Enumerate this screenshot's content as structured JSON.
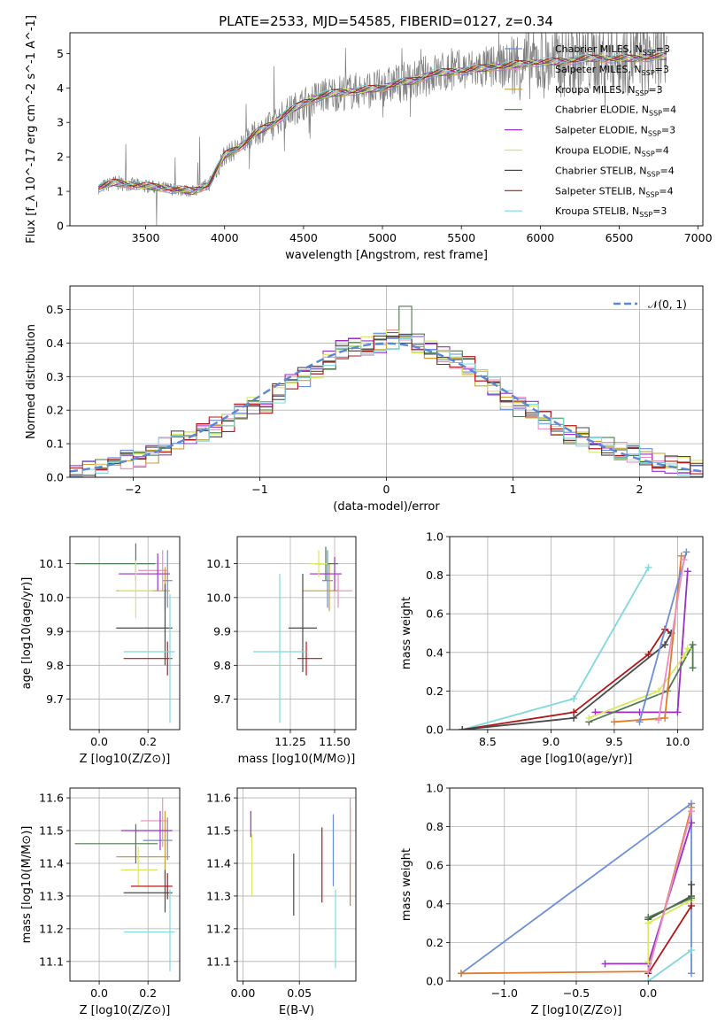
{
  "figure_title": "PLATE=2533, MJD=54585, FIBERID=0127, z=0.34",
  "colors": {
    "chabrier_miles": "#6b8ed6",
    "salpeter_miles": "#ea8fbf",
    "kroupa_miles": "#c8a030",
    "chabrier_elodie": "#4e7a4e",
    "salpeter_elodie": "#9b2fc8",
    "kroupa_elodie": "#d9e860",
    "chabrier_stelib": "#4a4a4a",
    "salpeter_stelib": "#b01818",
    "kroupa_stelib": "#7fd8dc",
    "data": "#7f7f7f",
    "normal": "#5b88d6",
    "extra_orange": "#e07b2a"
  },
  "chart_data": [
    {
      "id": "spectrum",
      "type": "line",
      "xlabel": "wavelength [Angstrom, rest frame]",
      "ylabel": "Flux [f_λ 10^-17 erg cm^-2 s^-1 A^-1]",
      "xlim": [
        3020,
        7030
      ],
      "ylim": [
        0,
        5.6
      ],
      "xticks": [
        3500,
        4000,
        4500,
        5000,
        5500,
        6000,
        6500,
        7000
      ],
      "yticks": [
        0,
        1,
        2,
        3,
        4,
        5
      ],
      "grid": false,
      "legend_position": "right",
      "legend": [
        {
          "name": "Chabrier MILES, N_SSP=3",
          "color": "chabrier_miles"
        },
        {
          "name": "Salpeter MILES, N_SSP=3",
          "color": "salpeter_miles"
        },
        {
          "name": "Kroupa MILES, N_SSP=3",
          "color": "kroupa_miles"
        },
        {
          "name": "Chabrier ELODIE, N_SSP=4",
          "color": "chabrier_elodie"
        },
        {
          "name": "Salpeter ELODIE, N_SSP=3",
          "color": "salpeter_elodie"
        },
        {
          "name": "Kroupa ELODIE, N_SSP=4",
          "color": "kroupa_elodie"
        },
        {
          "name": "Chabrier STELIB, N_SSP=4",
          "color": "chabrier_stelib"
        },
        {
          "name": "Salpeter STELIB, N_SSP=4",
          "color": "salpeter_stelib"
        },
        {
          "name": "Kroupa STELIB, N_SSP=3",
          "color": "kroupa_stelib"
        }
      ],
      "continuum": {
        "x": [
          3200,
          3300,
          3400,
          3500,
          3600,
          3700,
          3800,
          3900,
          4000,
          4100,
          4200,
          4300,
          4400,
          4500,
          4600,
          4700,
          4800,
          4900,
          5000,
          5100,
          5200,
          5300,
          5400,
          5500,
          5600,
          5700,
          5800,
          5900,
          6000,
          6100,
          6200,
          6300,
          6400,
          6500,
          6600,
          6700,
          6800
        ],
        "y": [
          1.1,
          1.25,
          1.2,
          1.15,
          1.1,
          1.05,
          1.0,
          1.2,
          2.05,
          2.3,
          2.7,
          2.95,
          3.3,
          3.55,
          3.75,
          3.85,
          3.9,
          3.95,
          4.0,
          4.15,
          4.2,
          4.4,
          4.45,
          4.5,
          4.55,
          4.6,
          4.65,
          4.7,
          4.75,
          4.75,
          4.8,
          4.85,
          4.85,
          4.85,
          4.85,
          4.9,
          4.9
        ]
      }
    },
    {
      "id": "residual_hist",
      "type": "line",
      "xlabel": "(data-model)/error",
      "ylabel": "Normed distribution",
      "xlim": [
        -2.5,
        2.5
      ],
      "ylim": [
        0,
        0.57
      ],
      "xticks": [
        -2,
        -1,
        0,
        1,
        2
      ],
      "yticks": [
        0.0,
        0.1,
        0.2,
        0.3,
        0.4,
        0.5
      ],
      "grid": true,
      "legend_position": "top-right",
      "legend": [
        {
          "name": "𝒩(0, 1)",
          "color": "normal"
        }
      ],
      "series": [
        {
          "name": "𝒩(0, 1)",
          "function": "standard normal pdf",
          "color": "normal"
        }
      ],
      "hist_centers": [
        -2.45,
        -2.35,
        -2.25,
        -2.15,
        -2.05,
        -1.95,
        -1.85,
        -1.75,
        -1.65,
        -1.55,
        -1.45,
        -1.35,
        -1.25,
        -1.15,
        -1.05,
        -0.95,
        -0.85,
        -0.75,
        -0.65,
        -0.55,
        -0.45,
        -0.35,
        -0.25,
        -0.15,
        -0.05,
        0.05,
        0.15,
        0.25,
        0.35,
        0.45,
        0.55,
        0.65,
        0.75,
        0.85,
        0.95,
        1.05,
        1.15,
        1.25,
        1.35,
        1.45,
        1.55,
        1.65,
        1.75,
        1.85,
        1.95,
        2.05,
        2.15,
        2.25,
        2.35,
        2.45
      ],
      "hist_base": [
        0.015,
        0.025,
        0.035,
        0.05,
        0.055,
        0.06,
        0.07,
        0.09,
        0.11,
        0.13,
        0.135,
        0.15,
        0.165,
        0.2,
        0.21,
        0.22,
        0.25,
        0.28,
        0.3,
        0.32,
        0.35,
        0.38,
        0.385,
        0.39,
        0.4,
        0.41,
        0.42,
        0.4,
        0.38,
        0.36,
        0.35,
        0.33,
        0.3,
        0.27,
        0.23,
        0.21,
        0.2,
        0.17,
        0.15,
        0.13,
        0.12,
        0.1,
        0.09,
        0.08,
        0.07,
        0.06,
        0.045,
        0.04,
        0.035,
        0.03
      ]
    },
    {
      "id": "age_vs_Z",
      "type": "scatter",
      "xlabel": "Z [log10(Z/Z⊙)]",
      "ylabel": "age  [log10(age/yr)]",
      "xlim": [
        -0.12,
        0.33
      ],
      "ylim": [
        9.61,
        10.18
      ],
      "xticks": [
        0.0,
        0.2
      ],
      "yticks": [
        9.7,
        9.8,
        9.9,
        10.0,
        10.1
      ],
      "grid": true,
      "points": [
        {
          "color": "chabrier_miles",
          "x": 0.28,
          "y": 10.05,
          "xerr": [
            0.02,
            0.02
          ],
          "yerr": [
            0.08,
            0.09
          ]
        },
        {
          "color": "salpeter_miles",
          "x": 0.26,
          "y": 10.08,
          "xerr": [
            0.1,
            0.02
          ],
          "yerr": [
            0.06,
            0.06
          ]
        },
        {
          "color": "kroupa_miles",
          "x": 0.27,
          "y": 10.02,
          "xerr": [
            0.2,
            0.02
          ],
          "yerr": [
            0.06,
            0.07
          ]
        },
        {
          "color": "chabrier_elodie",
          "x": 0.15,
          "y": 10.1,
          "xerr": [
            0.25,
            0.08
          ],
          "yerr": [
            0.05,
            0.06
          ]
        },
        {
          "color": "salpeter_elodie",
          "x": 0.24,
          "y": 10.07,
          "xerr": [
            0.16,
            0.05
          ],
          "yerr": [
            0.05,
            0.06
          ]
        },
        {
          "color": "kroupa_elodie",
          "x": 0.15,
          "y": 10.02,
          "xerr": [
            0.07,
            0.07
          ],
          "yerr": [
            0.08,
            0.09
          ]
        },
        {
          "color": "chabrier_stelib",
          "x": 0.27,
          "y": 9.91,
          "xerr": [
            0.2,
            0.03
          ],
          "yerr": [
            0.11,
            0.13
          ]
        },
        {
          "color": "salpeter_stelib",
          "x": 0.28,
          "y": 9.82,
          "xerr": [
            0.18,
            0.02
          ],
          "yerr": [
            0.05,
            0.05
          ]
        },
        {
          "color": "kroupa_stelib",
          "x": 0.29,
          "y": 9.84,
          "xerr": [
            0.19,
            0.02
          ],
          "yerr": [
            0.21,
            0.17
          ]
        }
      ]
    },
    {
      "id": "age_vs_mass",
      "type": "scatter",
      "xlabel": "mass [log10(M/M⊙)]",
      "ylabel": "",
      "xlim": [
        10.95,
        11.62
      ],
      "ylim": [
        9.61,
        10.18
      ],
      "xticks": [
        11.25,
        11.5
      ],
      "yticks": [
        9.7,
        9.8,
        9.9,
        10.0,
        10.1
      ],
      "grid": true,
      "points": [
        {
          "color": "chabrier_miles",
          "x": 11.46,
          "y": 10.05,
          "xerr": [
            0.03,
            0.03
          ],
          "yerr": [
            0.08,
            0.09
          ]
        },
        {
          "color": "salpeter_miles",
          "x": 11.52,
          "y": 10.02,
          "xerr": [
            0.06,
            0.08
          ],
          "yerr": [
            0.05,
            0.05
          ]
        },
        {
          "color": "kroupa_miles",
          "x": 11.47,
          "y": 10.02,
          "xerr": [
            0.15,
            0.05
          ],
          "yerr": [
            0.06,
            0.08
          ]
        },
        {
          "color": "chabrier_elodie",
          "x": 11.45,
          "y": 10.1,
          "xerr": [
            0.06,
            0.07
          ],
          "yerr": [
            0.05,
            0.05
          ]
        },
        {
          "color": "salpeter_elodie",
          "x": 11.5,
          "y": 10.07,
          "xerr": [
            0.14,
            0.04
          ],
          "yerr": [
            0.05,
            0.05
          ]
        },
        {
          "color": "kroupa_elodie",
          "x": 11.41,
          "y": 10.1,
          "xerr": [
            0.05,
            0.05
          ],
          "yerr": [
            0.04,
            0.04
          ]
        },
        {
          "color": "chabrier_stelib",
          "x": 11.32,
          "y": 9.91,
          "xerr": [
            0.08,
            0.08
          ],
          "yerr": [
            0.13,
            0.16
          ]
        },
        {
          "color": "salpeter_stelib",
          "x": 11.34,
          "y": 9.82,
          "xerr": [
            0.05,
            0.09
          ],
          "yerr": [
            0.05,
            0.05
          ]
        },
        {
          "color": "kroupa_stelib",
          "x": 11.19,
          "y": 9.84,
          "xerr": [
            0.15,
            0.15
          ],
          "yerr": [
            0.21,
            0.23
          ]
        }
      ]
    },
    {
      "id": "mass_weight_vs_age",
      "type": "line",
      "xlabel": "age  [log10(age/yr)]",
      "ylabel": "mass weight",
      "xlim": [
        8.2,
        10.2
      ],
      "ylim": [
        0.0,
        1.0
      ],
      "xticks": [
        8.5,
        9.0,
        9.5,
        10.0
      ],
      "yticks": [
        0.0,
        0.2,
        0.4,
        0.6,
        0.8,
        1.0
      ],
      "grid": true,
      "series": [
        {
          "color": "kroupa_stelib",
          "x": [
            8.3,
            9.18,
            9.77
          ],
          "y": [
            0.0,
            0.16,
            0.84
          ]
        },
        {
          "color": "salpeter_stelib",
          "x": [
            8.3,
            9.18,
            9.77,
            9.9,
            9.95
          ],
          "y": [
            0.0,
            0.09,
            0.39,
            0.52,
            0.5
          ]
        },
        {
          "color": "chabrier_stelib",
          "x": [
            8.3,
            9.18,
            9.9,
            9.95
          ],
          "y": [
            0.0,
            0.06,
            0.44,
            0.5
          ]
        },
        {
          "color": "salpeter_elodie",
          "x": [
            9.35,
            9.7,
            10.0,
            10.08
          ],
          "y": [
            0.09,
            0.09,
            0.09,
            0.82
          ]
        },
        {
          "color": "chabrier_elodie",
          "x": [
            9.3,
            9.92,
            10.12,
            10.12
          ],
          "y": [
            0.04,
            0.2,
            0.44,
            0.32
          ]
        },
        {
          "color": "kroupa_elodie",
          "x": [
            9.3,
            9.85,
            10.05,
            10.08
          ],
          "y": [
            0.06,
            0.2,
            0.38,
            0.42
          ]
        },
        {
          "color": "extra_orange",
          "x": [
            9.5,
            9.9,
            10.03
          ],
          "y": [
            0.04,
            0.06,
            0.9
          ]
        },
        {
          "color": "chabrier_miles",
          "x": [
            9.7,
            10.07
          ],
          "y": [
            0.04,
            0.92
          ]
        },
        {
          "color": "salpeter_miles",
          "x": [
            9.85,
            10.05
          ],
          "y": [
            0.05,
            0.88
          ]
        }
      ]
    },
    {
      "id": "mass_vs_Z",
      "type": "scatter",
      "xlabel": "Z [log10(Z/Z⊙)]",
      "ylabel": "mass [log10(M/M⊙)]",
      "xlim": [
        -0.12,
        0.33
      ],
      "ylim": [
        11.04,
        11.63
      ],
      "xticks": [
        0.0,
        0.2
      ],
      "yticks": [
        11.1,
        11.2,
        11.3,
        11.4,
        11.5,
        11.6
      ],
      "grid": true,
      "points": [
        {
          "color": "chabrier_miles",
          "x": 0.28,
          "y": 11.47,
          "xerr": [
            0.1,
            0.02
          ],
          "yerr": [
            0.06,
            0.07
          ]
        },
        {
          "color": "salpeter_miles",
          "x": 0.26,
          "y": 11.53,
          "xerr": [
            0.09,
            0.02
          ],
          "yerr": [
            0.08,
            0.07
          ]
        },
        {
          "color": "kroupa_miles",
          "x": 0.27,
          "y": 11.42,
          "xerr": [
            0.2,
            0.02
          ],
          "yerr": [
            0.07,
            0.14
          ]
        },
        {
          "color": "chabrier_elodie",
          "x": 0.15,
          "y": 11.46,
          "xerr": [
            0.25,
            0.09
          ],
          "yerr": [
            0.06,
            0.06
          ]
        },
        {
          "color": "salpeter_elodie",
          "x": 0.25,
          "y": 11.5,
          "xerr": [
            0.16,
            0.05
          ],
          "yerr": [
            0.06,
            0.06
          ]
        },
        {
          "color": "kroupa_elodie",
          "x": 0.16,
          "y": 11.38,
          "xerr": [
            0.07,
            0.08
          ],
          "yerr": [
            0.05,
            0.07
          ]
        },
        {
          "color": "chabrier_stelib",
          "x": 0.27,
          "y": 11.31,
          "xerr": [
            0.17,
            0.03
          ],
          "yerr": [
            0.06,
            0.07
          ]
        },
        {
          "color": "salpeter_stelib",
          "x": 0.28,
          "y": 11.33,
          "xerr": [
            0.15,
            0.02
          ],
          "yerr": [
            0.04,
            0.04
          ]
        },
        {
          "color": "kroupa_stelib",
          "x": 0.29,
          "y": 11.19,
          "xerr": [
            0.19,
            0.02
          ],
          "yerr": [
            0.12,
            0.13
          ]
        }
      ]
    },
    {
      "id": "mass_vs_ebv",
      "type": "scatter",
      "xlabel": "E(B-V)",
      "ylabel": "",
      "xlim": [
        -0.005,
        0.1
      ],
      "ylim": [
        11.04,
        11.63
      ],
      "xticks": [
        0.0,
        0.05
      ],
      "yticks": [
        11.1,
        11.2,
        11.3,
        11.4,
        11.5,
        11.6
      ],
      "grid": true,
      "points": [
        {
          "color": "salpeter_elodie",
          "x": 0.007,
          "y": 11.51,
          "yerr": [
            0.03,
            0.05
          ]
        },
        {
          "color": "kroupa_elodie",
          "x": 0.008,
          "y": 11.39,
          "yerr": [
            0.09,
            0.1
          ]
        },
        {
          "color": "chabrier_stelib",
          "x": 0.045,
          "y": 11.33,
          "yerr": [
            0.09,
            0.1
          ]
        },
        {
          "color": "salpeter_stelib",
          "x": 0.07,
          "y": 11.41,
          "yerr": [
            0.13,
            0.1
          ]
        },
        {
          "color": "chabrier_miles",
          "x": 0.08,
          "y": 11.43,
          "yerr": [
            0.1,
            0.12
          ]
        },
        {
          "color": "kroupa_stelib",
          "x": 0.082,
          "y": 11.19,
          "yerr": [
            0.11,
            0.13
          ]
        },
        {
          "color": "extra_orange",
          "x": 0.095,
          "y": 11.42,
          "yerr": [
            0.15,
            0.15
          ]
        },
        {
          "color": "salpeter_miles",
          "x": 0.095,
          "y": 11.5,
          "yerr": [
            0.1,
            0.1
          ]
        }
      ]
    },
    {
      "id": "mass_weight_vs_Z",
      "type": "line",
      "xlabel": "Z [log10(Z/Z⊙)]",
      "ylabel": "mass weight",
      "xlim": [
        -1.38,
        0.38
      ],
      "ylim": [
        0.0,
        1.0
      ],
      "xticks": [
        -1.0,
        -0.5,
        0.0
      ],
      "yticks": [
        0.0,
        0.2,
        0.4,
        0.6,
        0.8,
        1.0
      ],
      "grid": true,
      "series": [
        {
          "color": "chabrier_miles",
          "x": [
            -1.3,
            0.3,
            0.3
          ],
          "y": [
            0.04,
            0.92,
            0.04
          ]
        },
        {
          "color": "extra_orange",
          "x": [
            -1.3,
            0.0,
            0.3
          ],
          "y": [
            0.04,
            0.05,
            0.9
          ]
        },
        {
          "color": "salpeter_elodie",
          "x": [
            -0.3,
            0.0,
            0.3
          ],
          "y": [
            0.09,
            0.09,
            0.82
          ]
        },
        {
          "color": "kroupa_stelib",
          "x": [
            0.0,
            0.3
          ],
          "y": [
            0.0,
            0.16
          ]
        },
        {
          "color": "chabrier_stelib",
          "x": [
            0.0,
            0.3,
            0.3
          ],
          "y": [
            0.32,
            0.44,
            0.5
          ]
        },
        {
          "color": "kroupa_elodie",
          "x": [
            0.0,
            0.0,
            0.3
          ],
          "y": [
            0.1,
            0.3,
            0.42
          ]
        },
        {
          "color": "salpeter_stelib",
          "x": [
            0.0,
            0.3
          ],
          "y": [
            0.04,
            0.39
          ]
        },
        {
          "color": "chabrier_elodie",
          "x": [
            0.0,
            0.3
          ],
          "y": [
            0.33,
            0.43
          ]
        },
        {
          "color": "salpeter_miles",
          "x": [
            0.0,
            0.3
          ],
          "y": [
            0.05,
            0.88
          ]
        }
      ]
    }
  ]
}
